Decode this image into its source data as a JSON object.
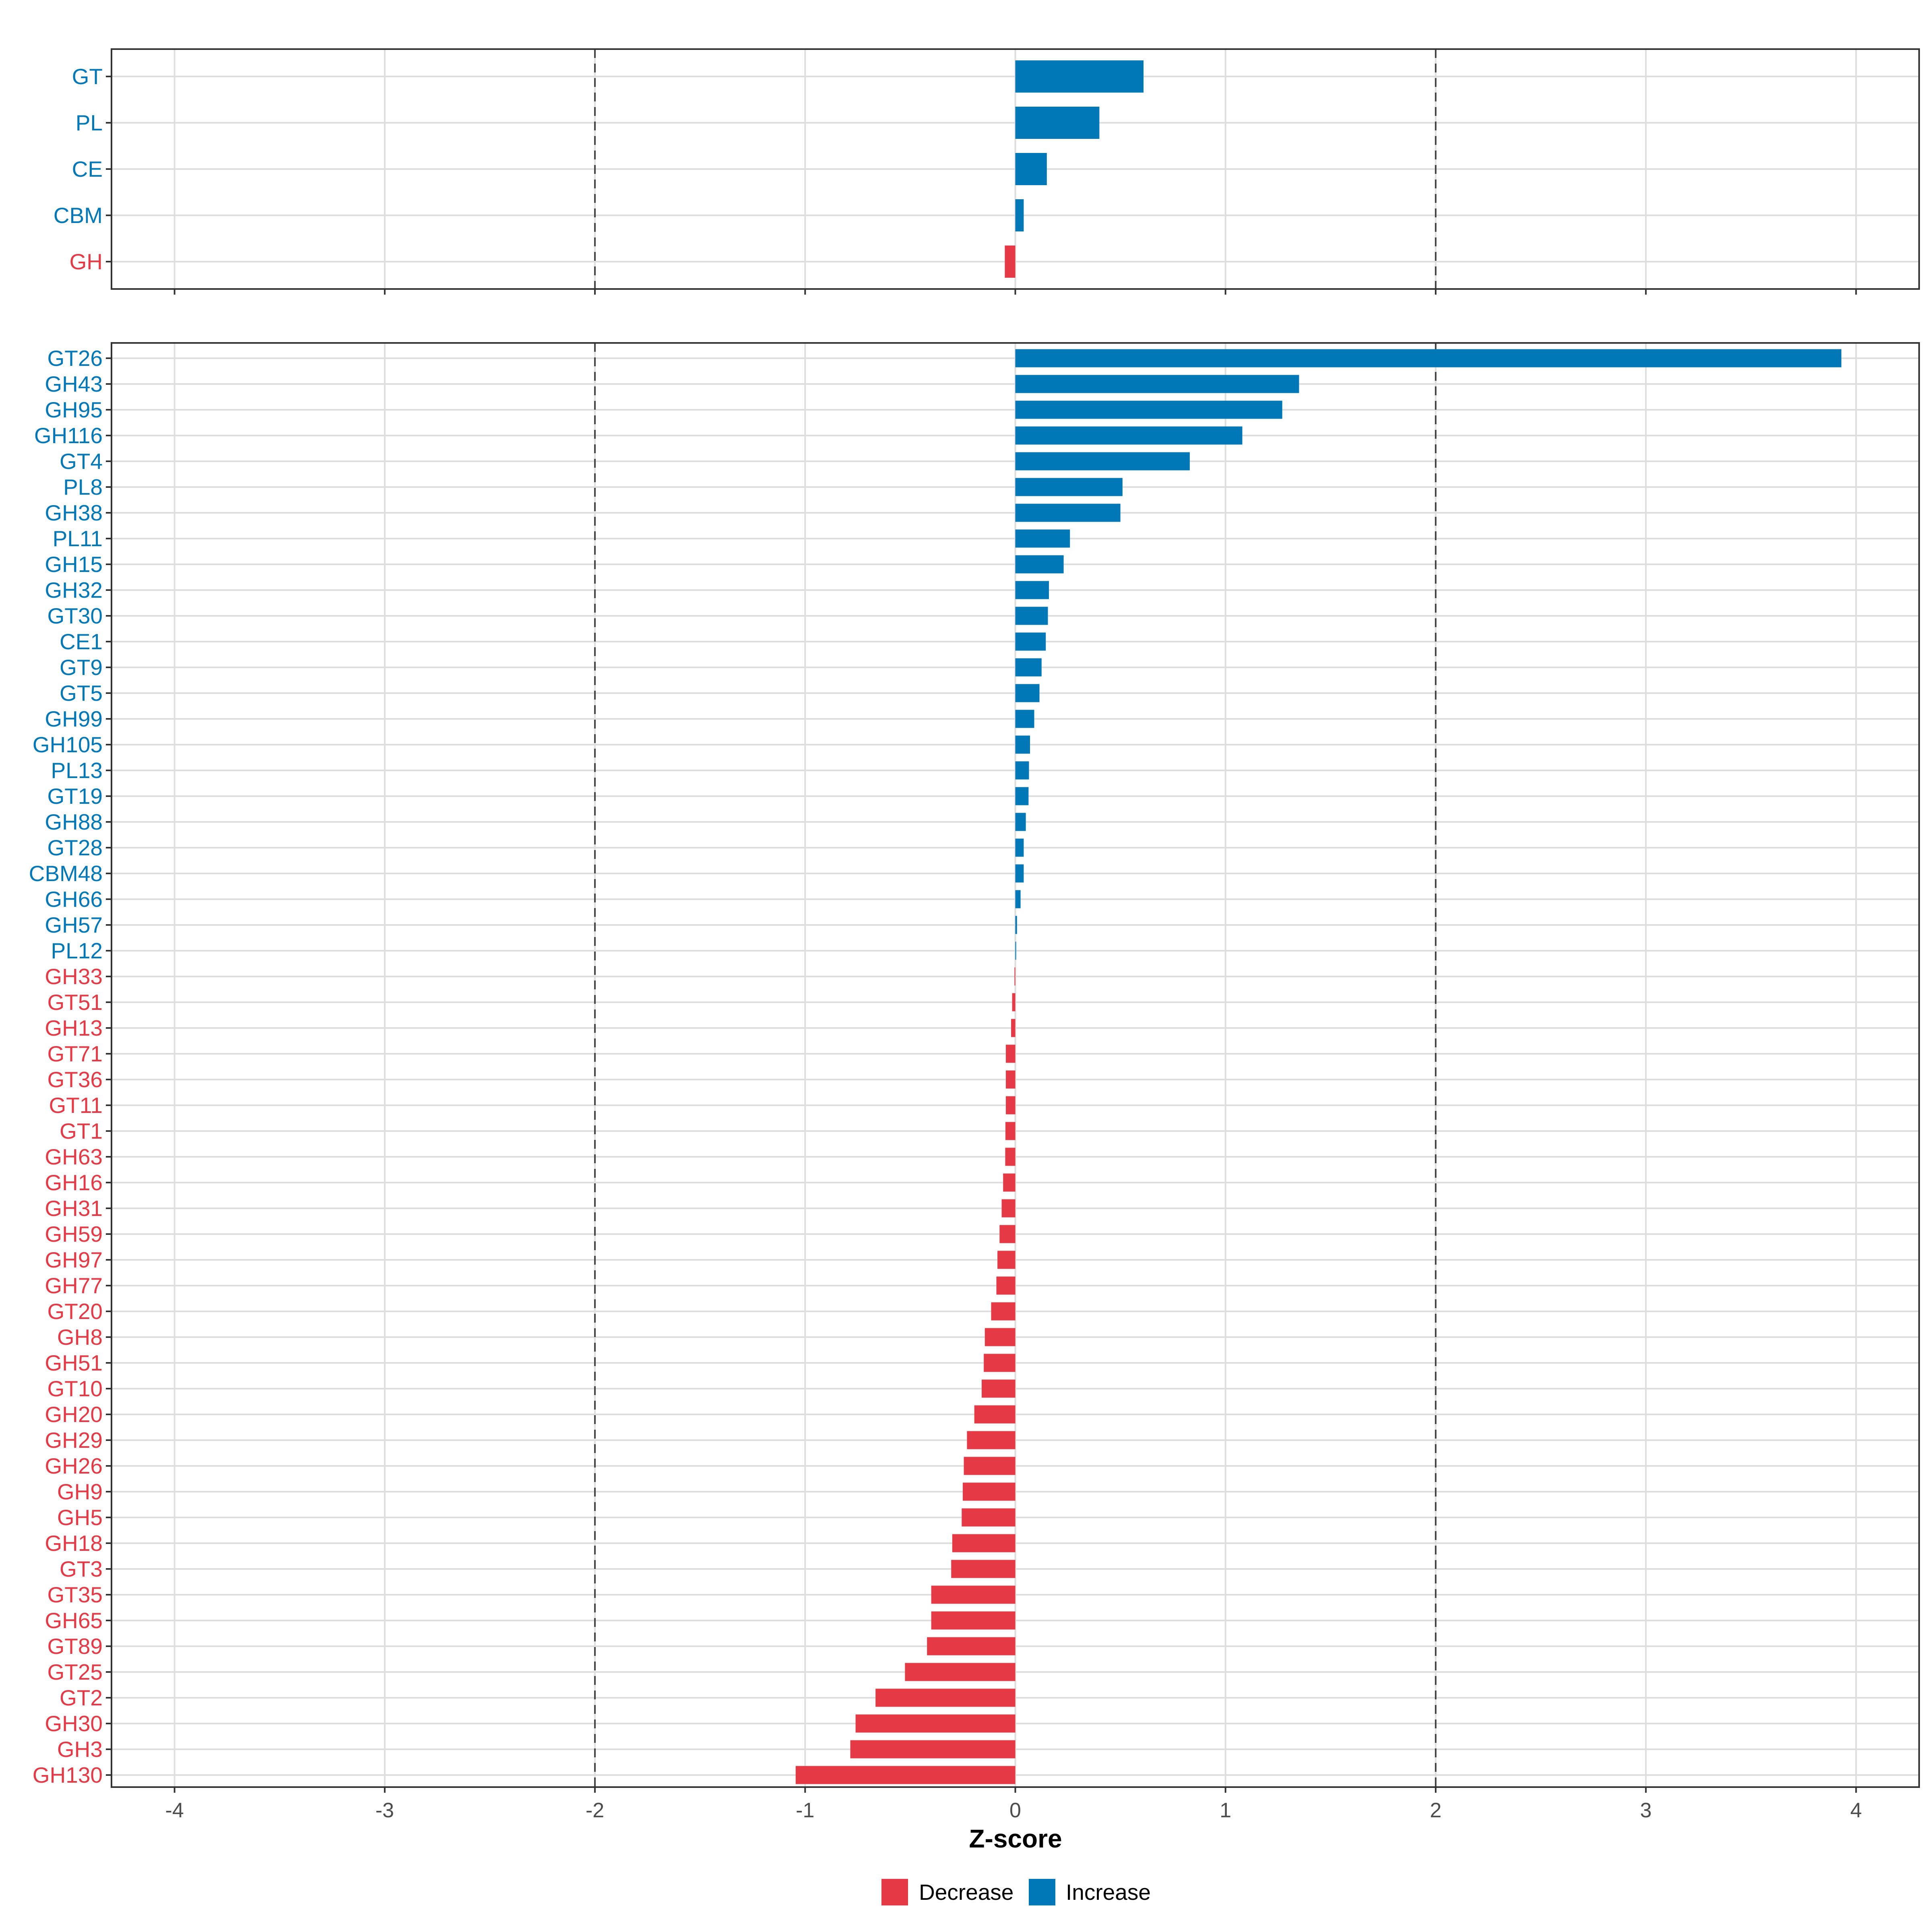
{
  "chart_data": [
    {
      "type": "bar",
      "orientation": "horizontal",
      "panel": "top",
      "categories": [
        "GT",
        "PL",
        "CE",
        "CBM",
        "GH"
      ],
      "values": [
        0.61,
        0.4,
        0.15,
        0.04,
        -0.05
      ],
      "xlim": [
        -4.3,
        4.3
      ],
      "reference_lines": [
        -2,
        2
      ],
      "grid": true
    },
    {
      "type": "bar",
      "orientation": "horizontal",
      "panel": "bottom",
      "categories": [
        "GT26",
        "GH43",
        "GH95",
        "GH116",
        "GT4",
        "PL8",
        "GH38",
        "PL11",
        "GH15",
        "GH32",
        "GT30",
        "CE1",
        "GT9",
        "GT5",
        "GH99",
        "GH105",
        "PL13",
        "GT19",
        "GH88",
        "GT28",
        "CBM48",
        "GH66",
        "GH57",
        "PL12",
        "GH33",
        "GT51",
        "GH13",
        "GT71",
        "GT36",
        "GT11",
        "GT1",
        "GH63",
        "GH16",
        "GH31",
        "GH59",
        "GH97",
        "GH77",
        "GT20",
        "GH8",
        "GH51",
        "GT10",
        "GH20",
        "GH29",
        "GH26",
        "GH9",
        "GH5",
        "GH18",
        "GT3",
        "GT35",
        "GH65",
        "GT89",
        "GT25",
        "GT2",
        "GH30",
        "GH3",
        "GH130"
      ],
      "values": [
        3.93,
        1.35,
        1.27,
        1.08,
        0.83,
        0.51,
        0.5,
        0.26,
        0.23,
        0.16,
        0.155,
        0.145,
        0.125,
        0.115,
        0.09,
        0.07,
        0.065,
        0.063,
        0.05,
        0.04,
        0.04,
        0.025,
        0.008,
        0.004,
        -0.004,
        -0.015,
        -0.02,
        -0.045,
        -0.045,
        -0.045,
        -0.047,
        -0.048,
        -0.058,
        -0.065,
        -0.075,
        -0.085,
        -0.09,
        -0.115,
        -0.145,
        -0.15,
        -0.16,
        -0.195,
        -0.23,
        -0.245,
        -0.25,
        -0.255,
        -0.3,
        -0.305,
        -0.4,
        -0.4,
        -0.42,
        -0.525,
        -0.665,
        -0.76,
        -0.785,
        -1.045
      ],
      "xlabel": "Z-score",
      "xticks": [
        -4,
        -3,
        -2,
        -1,
        0,
        1,
        2,
        3,
        4
      ],
      "xlim": [
        -4.3,
        4.3
      ],
      "reference_lines": [
        -2,
        2
      ],
      "grid": true
    }
  ],
  "legend": {
    "position": "bottom",
    "items": [
      {
        "label": "Decrease",
        "color": "#e63946"
      },
      {
        "label": "Increase",
        "color": "#0077b6"
      }
    ]
  },
  "colors": {
    "increase": "#0077b6",
    "decrease": "#e63946"
  }
}
